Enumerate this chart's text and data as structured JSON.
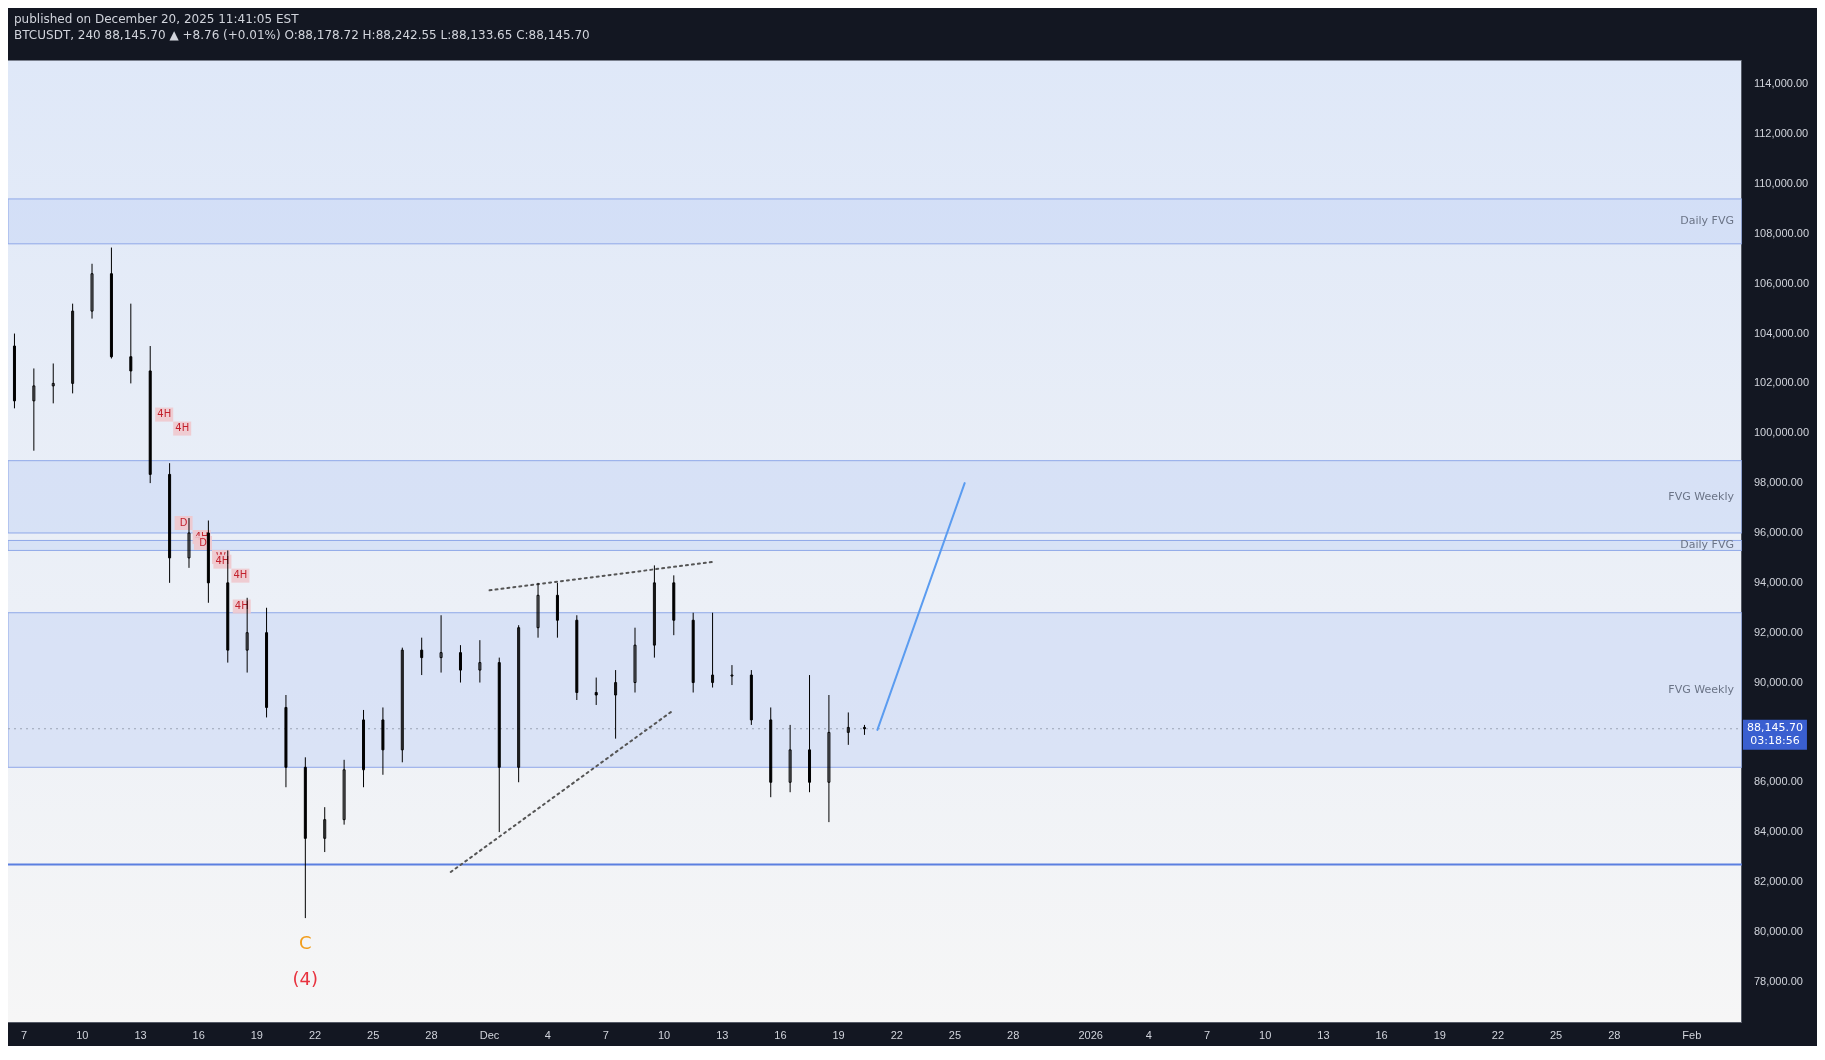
{
  "chart_data": {
    "type": "candlestick",
    "title": "BTCUSDT, 240  88,145.70 ▲ +8.76 (+0.01%) O:88,178.72 H:88,242.55 L:88,133.65 C:88,145.70",
    "subtitle": "published on December 20, 2025 11:41:05 EST",
    "x": [
      "2025-11-06T12:00",
      "2025-11-07T12:00",
      "2025-11-08T12:00",
      "2025-11-09T12:00",
      "2025-11-10T12:00",
      "2025-11-11T12:00",
      "2025-11-12T12:00",
      "2025-11-13T12:00",
      "2025-11-14T12:00",
      "2025-11-15T12:00",
      "2025-11-16T12:00",
      "2025-11-17T12:00",
      "2025-11-18T12:00",
      "2025-11-19T12:00",
      "2025-11-20T12:00",
      "2025-11-21T12:00",
      "2025-11-22T12:00",
      "2025-11-23T12:00",
      "2025-11-24T12:00",
      "2025-11-25T12:00",
      "2025-11-26T12:00",
      "2025-11-27T12:00",
      "2025-11-28T12:00",
      "2025-11-29T12:00",
      "2025-11-30T12:00",
      "2025-12-01T12:00",
      "2025-12-02T12:00",
      "2025-12-03T12:00",
      "2025-12-04T12:00",
      "2025-12-05T12:00",
      "2025-12-06T12:00",
      "2025-12-07T12:00",
      "2025-12-08T12:00",
      "2025-12-09T12:00",
      "2025-12-10T12:00",
      "2025-12-11T12:00",
      "2025-12-12T12:00",
      "2025-12-13T12:00",
      "2025-12-14T12:00",
      "2025-12-15T12:00",
      "2025-12-16T12:00",
      "2025-12-17T12:00",
      "2025-12-18T12:00",
      "2025-12-19T12:00",
      "2025-12-20T08:00"
    ],
    "ohlc": [
      [
        103500,
        104000,
        101000,
        101300
      ],
      [
        101300,
        102600,
        99300,
        101900
      ],
      [
        101900,
        102800,
        101200,
        102000
      ],
      [
        102000,
        105200,
        101600,
        104900
      ],
      [
        104900,
        106800,
        104600,
        106400
      ],
      [
        106400,
        107450,
        103000,
        103070
      ],
      [
        103070,
        105200,
        102000,
        102500
      ],
      [
        102500,
        103500,
        98000,
        98350
      ],
      [
        98350,
        98800,
        94000,
        95000
      ],
      [
        95000,
        96600,
        94600,
        96000
      ],
      [
        96000,
        96500,
        93200,
        94000
      ],
      [
        94000,
        95300,
        90800,
        91300
      ],
      [
        91300,
        93400,
        90400,
        92000
      ],
      [
        92000,
        93000,
        88600,
        89000
      ],
      [
        89000,
        89500,
        85800,
        86600
      ],
      [
        86600,
        87000,
        80550,
        83750
      ],
      [
        83750,
        85000,
        83200,
        84500
      ],
      [
        84500,
        86900,
        84300,
        86500
      ],
      [
        86500,
        88900,
        85800,
        88500
      ],
      [
        88500,
        89000,
        86300,
        87300
      ],
      [
        87300,
        91400,
        86800,
        91300
      ],
      [
        91300,
        91800,
        90300,
        91000
      ],
      [
        91000,
        92700,
        90400,
        91200
      ],
      [
        91200,
        91500,
        90000,
        90500
      ],
      [
        90500,
        91700,
        90000,
        90800
      ],
      [
        90800,
        91000,
        84000,
        86600
      ],
      [
        86600,
        92300,
        86000,
        92200
      ],
      [
        92200,
        94000,
        91800,
        93500
      ],
      [
        93500,
        94000,
        91800,
        92500
      ],
      [
        92500,
        92700,
        89300,
        89600
      ],
      [
        89600,
        90200,
        89100,
        89500
      ],
      [
        89500,
        90500,
        87750,
        90000
      ],
      [
        90000,
        92200,
        89600,
        91500
      ],
      [
        91500,
        94700,
        91000,
        94000
      ],
      [
        94000,
        94300,
        91900,
        92500
      ],
      [
        92500,
        92800,
        89600,
        90000
      ],
      [
        90000,
        92800,
        89800,
        90300
      ],
      [
        90300,
        90700,
        89900,
        90300
      ],
      [
        90300,
        90500,
        88300,
        88500
      ],
      [
        88500,
        89000,
        85400,
        86000
      ],
      [
        86000,
        88300,
        85600,
        87300
      ],
      [
        87300,
        90300,
        85600,
        86000
      ],
      [
        86000,
        89500,
        84400,
        88000
      ],
      [
        88000,
        88800,
        87500,
        88200
      ],
      [
        88200,
        88300,
        87900,
        88145.7
      ]
    ],
    "color": "#000000",
    "series": [
      {
        "type": "line",
        "line_style": "dotted",
        "color": "#555555",
        "x": [
          "2025-12-01",
          "2025-12-12T15:00"
        ],
        "values": [
          93700,
          94850
        ]
      },
      {
        "type": "line",
        "line_style": "dotted",
        "color": "#555555",
        "x": [
          "2025-11-29",
          "2025-12-10T12:00"
        ],
        "values": [
          82400,
          88900
        ]
      },
      {
        "type": "line",
        "line_style": "solid",
        "color": "#5b9cf0",
        "x": [
          "2025-12-21",
          "2025-12-25T12:00"
        ],
        "values": [
          88100,
          98000
        ]
      }
    ],
    "bands": [
      {
        "axis": "y",
        "from": 107600,
        "to": 109400,
        "label": "Daily FVG",
        "color": "#c6d6f5"
      },
      {
        "axis": "y",
        "from": 96000,
        "to": 98900,
        "label": "FVG Weekly",
        "color": "#c6d6f5"
      },
      {
        "axis": "y",
        "from": 95300,
        "to": 95700,
        "label": "Daily FVG",
        "color": "#c6d6f5"
      },
      {
        "axis": "y",
        "from": 86600,
        "to": 92800,
        "label": "FVG Weekly",
        "color": "#c6d6f5"
      }
    ],
    "ref_lines": [
      {
        "axis": "y",
        "value": 88145.7,
        "label": "88,145.70",
        "color": "#9aa3b5",
        "line_style": "dotted"
      },
      {
        "axis": "y",
        "value": 82700,
        "label": null,
        "color": "#5b7fe0",
        "line_style": "solid"
      }
    ],
    "annotations": [
      "C",
      "(4)",
      "03:18:56",
      "4H",
      "4H",
      "D",
      "4H",
      "D",
      "W",
      "4H",
      "4H",
      "4H"
    ],
    "xlim": [
      "2025-11-06T04:00",
      "2026-02-03T14:00"
    ],
    "xticks": [
      {
        "value": "2025-11-07",
        "label": "7"
      },
      {
        "value": "2025-11-10",
        "label": "10"
      },
      {
        "value": "2025-11-13",
        "label": "13"
      },
      {
        "value": "2025-11-16",
        "label": "16"
      },
      {
        "value": "2025-11-19",
        "label": "19"
      },
      {
        "value": "2025-11-22",
        "label": "22"
      },
      {
        "value": "2025-11-25",
        "label": "25"
      },
      {
        "value": "2025-11-28",
        "label": "28"
      },
      {
        "value": "2025-12-01",
        "label": "Dec"
      },
      {
        "value": "2025-12-04",
        "label": "4"
      },
      {
        "value": "2025-12-07",
        "label": "7"
      },
      {
        "value": "2025-12-10",
        "label": "10"
      },
      {
        "value": "2025-12-13",
        "label": "13"
      },
      {
        "value": "2025-12-16",
        "label": "16"
      },
      {
        "value": "2025-12-19",
        "label": "19"
      },
      {
        "value": "2025-12-22",
        "label": "22"
      },
      {
        "value": "2025-12-25",
        "label": "25"
      },
      {
        "value": "2025-12-28",
        "label": "28"
      },
      {
        "value": "2026-01-01",
        "label": "2026"
      },
      {
        "value": "2026-01-04",
        "label": "4"
      },
      {
        "value": "2026-01-07",
        "label": "7"
      },
      {
        "value": "2026-01-10",
        "label": "10"
      },
      {
        "value": "2026-01-13",
        "label": "13"
      },
      {
        "value": "2026-01-16",
        "label": "16"
      },
      {
        "value": "2026-01-19",
        "label": "19"
      },
      {
        "value": "2026-01-22",
        "label": "22"
      },
      {
        "value": "2026-01-25",
        "label": "25"
      },
      {
        "value": "2026-01-28",
        "label": "28"
      },
      {
        "value": "2026-02-01",
        "label": "Feb"
      }
    ],
    "ylim": [
      76350,
      114950
    ],
    "yticks": [
      {
        "value": 78000,
        "label": "78,000.00"
      },
      {
        "value": 80000,
        "label": "80,000.00"
      },
      {
        "value": 82000,
        "label": "82,000.00"
      },
      {
        "value": 84000,
        "label": "84,000.00"
      },
      {
        "value": 86000,
        "label": "86,000.00"
      },
      {
        "value": 90000,
        "label": "90,000.00"
      },
      {
        "value": 92000,
        "label": "92,000.00"
      },
      {
        "value": 94000,
        "label": "94,000.00"
      },
      {
        "value": 96000,
        "label": "96,000.00"
      },
      {
        "value": 98000,
        "label": "98,000.00"
      },
      {
        "value": 100000,
        "label": "100,000.00"
      },
      {
        "value": 102000,
        "label": "102,000.00"
      },
      {
        "value": 104000,
        "label": "104,000.00"
      },
      {
        "value": 106000,
        "label": "106,000.00"
      },
      {
        "value": 108000,
        "label": "108,000.00"
      },
      {
        "value": 110000,
        "label": "110,000.00"
      },
      {
        "value": 112000,
        "label": "112,000.00"
      },
      {
        "value": 114000,
        "label": "114,000.00"
      }
    ],
    "grid": false,
    "legend": false
  }
}
